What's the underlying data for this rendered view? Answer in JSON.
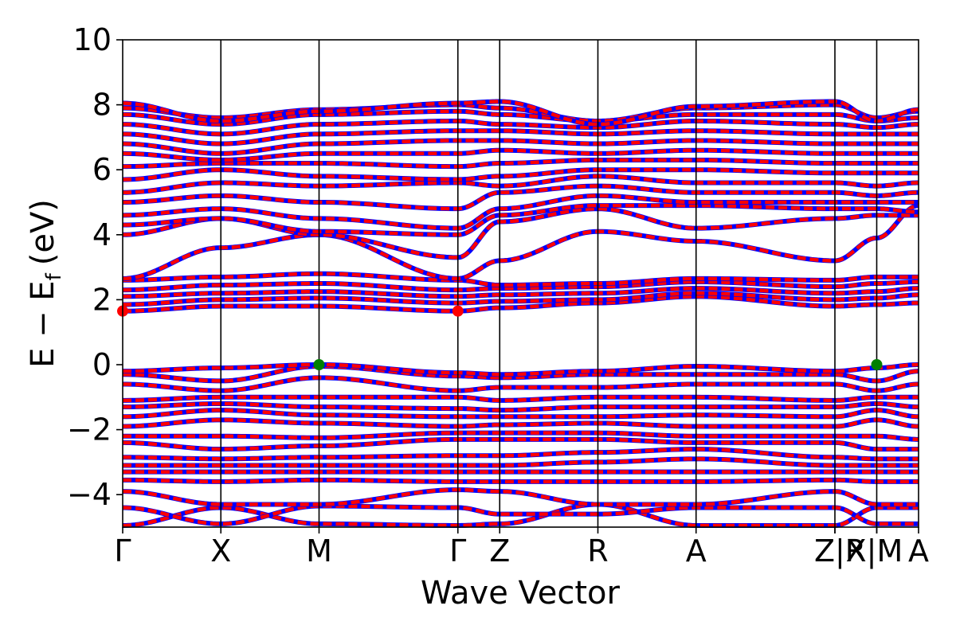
{
  "chart_data": {
    "type": "line",
    "title": "",
    "xlabel": "Wave Vector",
    "ylabel": "E − E",
    "ylabel_sub": "f",
    "ylabel_unit": "(eV)",
    "ylim": [
      -5,
      10
    ],
    "y_ticks": [
      10,
      8,
      6,
      4,
      2,
      0,
      -2,
      -4
    ],
    "y_tick_labels": [
      "10",
      "8",
      "6",
      "4",
      "2",
      "0",
      "−2",
      "−4"
    ],
    "k_points": [
      {
        "label": "Γ",
        "x": 0.0
      },
      {
        "label": "X",
        "x": 1.0
      },
      {
        "label": "M",
        "x": 2.0
      },
      {
        "label": "Γ",
        "x": 3.414
      },
      {
        "label": "Z",
        "x": 3.84
      },
      {
        "label": "R",
        "x": 4.84
      },
      {
        "label": "A",
        "x": 5.84
      },
      {
        "label": "Z",
        "x": 7.254
      },
      {
        "label": "|R",
        "x": 7.254
      },
      {
        "label": "X|",
        "x": 7.68
      },
      {
        "label": "M",
        "x": 7.68
      },
      {
        "label": "A",
        "x": 8.106
      }
    ],
    "x_range": [
      0.0,
      8.106
    ],
    "grid": false,
    "legend": "none",
    "series_colors": {
      "spin_up": "#0000ff",
      "spin_down": "#ff0000"
    },
    "marked_points": [
      {
        "kind": "cbm",
        "x": 0.0,
        "y": 1.65,
        "color": "#ff0000"
      },
      {
        "kind": "cbm",
        "x": 3.414,
        "y": 1.65,
        "color": "#ff0000"
      },
      {
        "kind": "vbm",
        "x": 2.0,
        "y": 0.0,
        "color": "#008000"
      },
      {
        "kind": "vbm",
        "x": 7.68,
        "y": 0.0,
        "color": "#008000"
      }
    ],
    "bands": [
      [
        -4.95,
        -4.4,
        -4.9,
        -4.95,
        -4.9,
        -4.3,
        -4.95,
        -4.95,
        -4.4,
        -4.4,
        -4.95
      ],
      [
        -4.4,
        -4.9,
        -4.35,
        -4.4,
        -4.6,
        -4.6,
        -4.4,
        -4.4,
        -4.9,
        -4.9,
        -4.4
      ],
      [
        -3.9,
        -4.3,
        -4.3,
        -3.85,
        -3.9,
        -4.3,
        -4.3,
        -3.9,
        -4.3,
        -4.3,
        -4.5
      ],
      [
        -3.55,
        -3.6,
        -3.55,
        -3.6,
        -3.6,
        -3.6,
        -3.6,
        -3.55,
        -3.6,
        -3.6,
        -3.7
      ],
      [
        -3.3,
        -3.3,
        -3.3,
        -3.3,
        -3.3,
        -3.3,
        -3.3,
        -3.3,
        -3.3,
        -3.3,
        -3.3
      ],
      [
        -3.1,
        -3.1,
        -3.1,
        -3.1,
        -3.1,
        -3.0,
        -2.9,
        -3.1,
        -3.1,
        -3.1,
        -3.1
      ],
      [
        -2.85,
        -2.9,
        -2.85,
        -2.8,
        -2.8,
        -2.7,
        -2.6,
        -2.85,
        -2.9,
        -2.9,
        -2.7
      ],
      [
        -2.4,
        -2.6,
        -2.5,
        -2.3,
        -2.3,
        -2.3,
        -2.4,
        -2.4,
        -2.6,
        -2.6,
        -2.5
      ],
      [
        -2.2,
        -2.2,
        -2.25,
        -2.1,
        -2.1,
        -2.1,
        -2.2,
        -2.2,
        -2.2,
        -2.3,
        -2.2
      ],
      [
        -1.9,
        -1.7,
        -1.8,
        -1.9,
        -1.85,
        -1.8,
        -1.9,
        -1.9,
        -1.7,
        -1.9,
        -1.8
      ],
      [
        -1.6,
        -1.4,
        -1.55,
        -1.6,
        -1.6,
        -1.6,
        -1.55,
        -1.6,
        -1.4,
        -1.6,
        -1.5
      ],
      [
        -1.3,
        -1.2,
        -1.3,
        -1.35,
        -1.4,
        -1.3,
        -1.3,
        -1.3,
        -1.2,
        -1.3,
        -1.25
      ],
      [
        -1.1,
        -1.0,
        -1.0,
        -1.0,
        -1.1,
        -1.0,
        -1.0,
        -1.1,
        -1.0,
        -1.0,
        -1.1
      ],
      [
        -0.6,
        -0.8,
        -0.4,
        -0.8,
        -0.7,
        -0.7,
        -0.6,
        -0.6,
        -0.8,
        -0.6,
        -0.6
      ],
      [
        -0.3,
        -0.5,
        -0.05,
        -0.35,
        -0.4,
        -0.3,
        -0.3,
        -0.3,
        -0.5,
        -0.2,
        -0.3
      ],
      [
        -0.2,
        -0.1,
        0.0,
        -0.25,
        -0.3,
        -0.2,
        -0.05,
        -0.2,
        -0.1,
        0.0,
        -0.1
      ],
      [
        1.65,
        1.8,
        1.8,
        1.65,
        1.75,
        1.9,
        2.1,
        1.8,
        1.85,
        1.9,
        2.1
      ],
      [
        1.85,
        2.0,
        2.05,
        1.9,
        1.95,
        2.0,
        2.2,
        2.0,
        2.05,
        2.15,
        2.2
      ],
      [
        2.1,
        2.2,
        2.25,
        2.1,
        2.15,
        2.2,
        2.35,
        2.2,
        2.25,
        2.35,
        2.5
      ],
      [
        2.3,
        2.45,
        2.5,
        2.3,
        2.35,
        2.4,
        2.55,
        2.4,
        2.5,
        2.55,
        2.65
      ],
      [
        2.6,
        2.7,
        2.8,
        2.6,
        2.45,
        2.5,
        2.65,
        2.6,
        2.7,
        2.7,
        2.8
      ],
      [
        2.65,
        3.6,
        4.0,
        2.65,
        3.2,
        4.1,
        3.8,
        3.2,
        3.9,
        4.9,
        3.85
      ],
      [
        4.0,
        4.5,
        4.0,
        3.3,
        4.4,
        4.8,
        4.2,
        4.5,
        4.6,
        4.6,
        4.4
      ],
      [
        4.3,
        4.5,
        4.1,
        4.0,
        4.6,
        4.9,
        4.9,
        4.8,
        4.8,
        4.7,
        4.6
      ],
      [
        4.6,
        4.8,
        4.5,
        4.2,
        4.8,
        5.2,
        5.0,
        5.0,
        5.0,
        5.0,
        5.0
      ],
      [
        5.0,
        5.2,
        5.0,
        4.8,
        5.3,
        5.5,
        5.3,
        5.3,
        5.2,
        5.3,
        5.4
      ],
      [
        5.3,
        5.6,
        5.5,
        5.6,
        5.5,
        5.8,
        5.6,
        5.6,
        5.5,
        5.6,
        5.7
      ],
      [
        5.7,
        6.0,
        5.8,
        5.7,
        5.8,
        6.0,
        6.0,
        5.9,
        5.9,
        5.9,
        5.9
      ],
      [
        6.1,
        6.2,
        6.2,
        6.1,
        6.2,
        6.3,
        6.3,
        6.2,
        6.2,
        6.2,
        6.3
      ],
      [
        6.5,
        6.3,
        6.5,
        6.5,
        6.6,
        6.5,
        6.6,
        6.5,
        6.5,
        6.5,
        6.6
      ],
      [
        6.8,
        6.5,
        6.8,
        6.9,
        6.9,
        6.8,
        6.9,
        6.8,
        6.8,
        6.8,
        6.9
      ],
      [
        7.1,
        6.8,
        7.1,
        7.2,
        7.2,
        7.1,
        7.2,
        7.1,
        7.1,
        7.1,
        7.2
      ],
      [
        7.4,
        7.1,
        7.4,
        7.5,
        7.4,
        7.3,
        7.5,
        7.4,
        7.3,
        7.4,
        7.5
      ],
      [
        7.7,
        7.4,
        7.7,
        7.8,
        7.7,
        7.5,
        7.7,
        7.7,
        7.5,
        7.6,
        7.7
      ],
      [
        7.9,
        7.6,
        7.85,
        8.0,
        7.9,
        7.5,
        7.9,
        8.0,
        7.6,
        7.8,
        7.9
      ],
      [
        8.05,
        7.5,
        7.8,
        8.05,
        8.1,
        7.4,
        7.95,
        8.1,
        7.5,
        7.85,
        7.95
      ]
    ]
  }
}
